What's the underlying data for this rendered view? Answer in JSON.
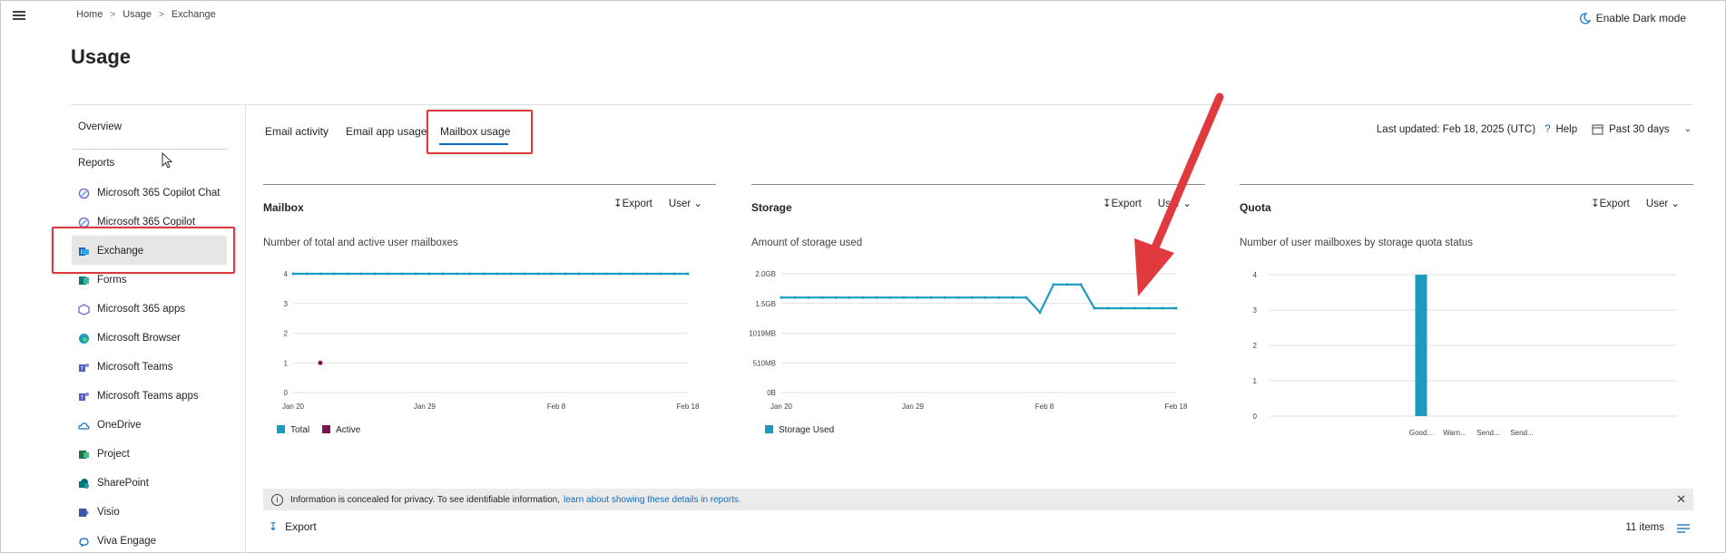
{
  "breadcrumb": [
    "Home",
    "Usage",
    "Exchange"
  ],
  "dark_mode_label": "Enable Dark mode",
  "page_title": "Usage",
  "sidebar": {
    "overview": "Overview",
    "reports_heading": "Reports",
    "items": [
      {
        "label": "Microsoft 365 Copilot Chat",
        "icon": "copilot-icon"
      },
      {
        "label": "Microsoft 365 Copilot",
        "icon": "copilot-icon"
      },
      {
        "label": "Exchange",
        "icon": "exchange-icon",
        "selected": true
      },
      {
        "label": "Forms",
        "icon": "forms-icon"
      },
      {
        "label": "Microsoft 365 apps",
        "icon": "m365-apps-icon"
      },
      {
        "label": "Microsoft Browser",
        "icon": "edge-icon"
      },
      {
        "label": "Microsoft Teams",
        "icon": "teams-icon"
      },
      {
        "label": "Microsoft Teams apps",
        "icon": "teams-icon"
      },
      {
        "label": "OneDrive",
        "icon": "onedrive-icon"
      },
      {
        "label": "Project",
        "icon": "project-icon"
      },
      {
        "label": "SharePoint",
        "icon": "sharepoint-icon"
      },
      {
        "label": "Visio",
        "icon": "visio-icon"
      },
      {
        "label": "Viva Engage",
        "icon": "viva-engage-icon"
      }
    ]
  },
  "tabs": [
    {
      "label": "Email activity"
    },
    {
      "label": "Email app usage"
    },
    {
      "label": "Mailbox usage",
      "selected": true
    }
  ],
  "top_right": {
    "last_updated": "Last updated: Feb 18, 2025 (UTC)",
    "help": "Help",
    "range": "Past 30 days"
  },
  "cards": [
    {
      "title": "Mailbox",
      "export": "Export",
      "user": "User",
      "subtitle": "Number of total and active user mailboxes"
    },
    {
      "title": "Storage",
      "export": "Export",
      "user": "User",
      "subtitle": "Amount of storage used"
    },
    {
      "title": "Quota",
      "export": "Export",
      "user": "User",
      "subtitle": "Number of user mailboxes by storage quota status"
    }
  ],
  "colors": {
    "accent": "#0f6cbd",
    "series_total": "#1a9bbf",
    "series_active": "#7a1453",
    "highlight": "#e0393e"
  },
  "chart_data": [
    {
      "type": "line",
      "title": "Mailbox",
      "x_ticks": [
        "Jan 20",
        "Jan 29",
        "Feb 8",
        "Feb 18"
      ],
      "y_ticks": [
        "0",
        "1",
        "2",
        "3",
        "4"
      ],
      "ylim": [
        0,
        4
      ],
      "legend_position": "bottom-left",
      "series": [
        {
          "name": "Total",
          "color": "#1a9bbf",
          "values": [
            4,
            4,
            4,
            4,
            4,
            4,
            4,
            4,
            4,
            4,
            4,
            4,
            4,
            4,
            4,
            4,
            4,
            4,
            4,
            4,
            4,
            4,
            4,
            4,
            4,
            4,
            4,
            4,
            4,
            4
          ]
        },
        {
          "name": "Active",
          "color": "#7a1453",
          "points": [
            [
              2,
              1
            ]
          ]
        }
      ]
    },
    {
      "type": "line",
      "title": "Storage",
      "x_ticks": [
        "Jan 20",
        "Jan 29",
        "Feb 8",
        "Feb 18"
      ],
      "y_ticks": [
        "0B",
        "510MB",
        "1019MB",
        "1.5GB",
        "2.0GB"
      ],
      "ylim": [
        0,
        2.0
      ],
      "legend_position": "bottom-left",
      "series": [
        {
          "name": "Storage Used",
          "color": "#1a9bbf",
          "values": [
            1.6,
            1.6,
            1.6,
            1.6,
            1.6,
            1.6,
            1.6,
            1.6,
            1.6,
            1.6,
            1.6,
            1.6,
            1.6,
            1.6,
            1.6,
            1.6,
            1.6,
            1.6,
            1.6,
            1.35,
            1.82,
            1.82,
            1.82,
            1.42,
            1.42,
            1.42,
            1.42,
            1.42,
            1.42,
            1.42
          ]
        }
      ]
    },
    {
      "type": "bar",
      "title": "Quota",
      "categories": [
        "Good...",
        "Warn...",
        "Send...",
        "Send..."
      ],
      "values": [
        4,
        0,
        0,
        0
      ],
      "y_ticks": [
        "0",
        "1",
        "2",
        "3",
        "4"
      ],
      "ylim": [
        0,
        4
      ],
      "color": "#1a9bbf"
    }
  ],
  "info_bar": {
    "text": "Information is concealed for privacy. To see identifiable information,",
    "link": "learn about showing these details in reports."
  },
  "footer": {
    "export": "Export",
    "items_count": "11 items"
  }
}
